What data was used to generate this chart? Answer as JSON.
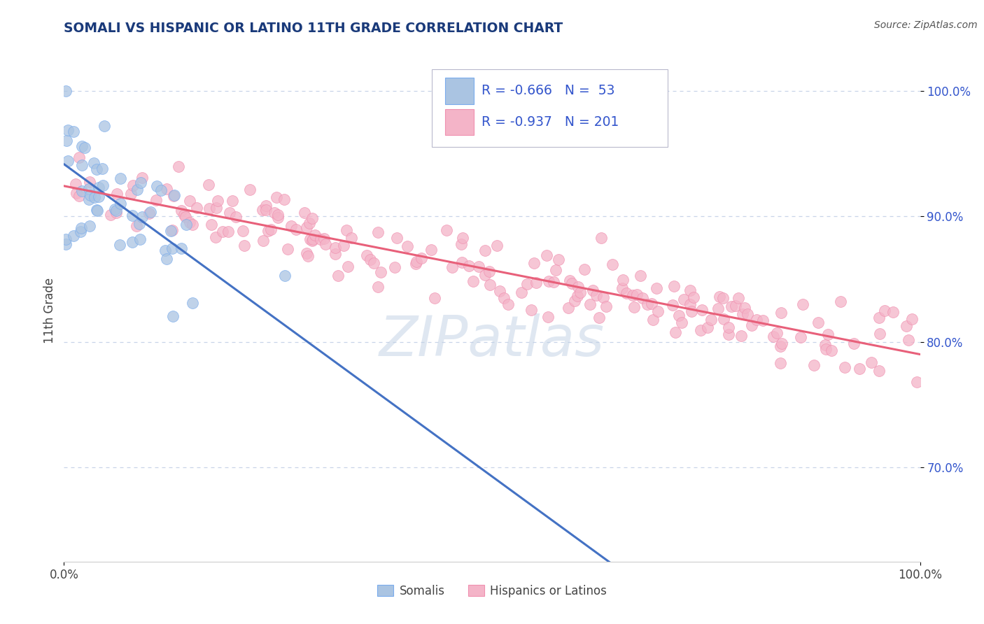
{
  "title": "SOMALI VS HISPANIC OR LATINO 11TH GRADE CORRELATION CHART",
  "source": "Source: ZipAtlas.com",
  "ylabel": "11th Grade",
  "legend1_label": "Somalis",
  "legend2_label": "Hispanics or Latinos",
  "R1": -0.666,
  "N1": 53,
  "R2": -0.937,
  "N2": 201,
  "color_somali_fill": "#aac4e2",
  "color_somali_edge": "#7aaced",
  "color_hispanic_fill": "#f4b4c8",
  "color_hispanic_edge": "#f090b0",
  "color_somali_line": "#4472c4",
  "color_hispanic_line": "#e8607a",
  "color_dashed": "#90b8d8",
  "xlim": [
    0.0,
    1.0
  ],
  "ylim": [
    0.625,
    1.025
  ],
  "ytick_vals": [
    0.7,
    0.8,
    0.9,
    1.0
  ],
  "ytick_labels": [
    "70.0%",
    "80.0%",
    "90.0%",
    "100.0%"
  ],
  "xtick_vals": [
    0.0,
    1.0
  ],
  "xtick_labels": [
    "0.0%",
    "100.0%"
  ],
  "background": "#ffffff",
  "grid_color": "#c8d4e8",
  "title_color": "#1a3a7a",
  "axis_label_color": "#444444",
  "tick_color": "#444444",
  "legend_text_color": "#3355cc",
  "watermark_text": "ZIPatlas",
  "watermark_color": "#c0d0e4",
  "source_color": "#555555"
}
